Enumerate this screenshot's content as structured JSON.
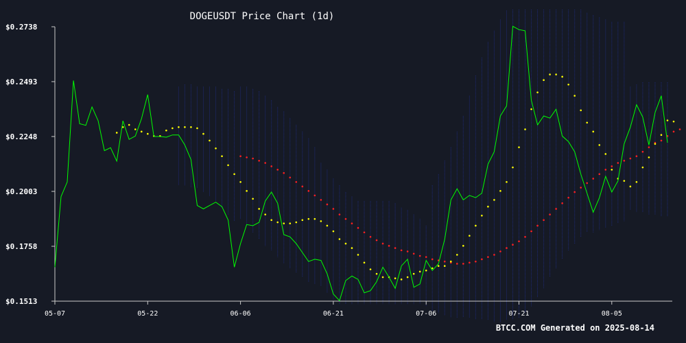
{
  "chart_data": {
    "type": "line",
    "title": "DOGEUSDT Price Chart (1d)",
    "xlabel": "",
    "ylabel": "",
    "footer": "BTCC.COM Generated on 2025-08-14",
    "ylim": [
      0.1513,
      0.2738
    ],
    "y_ticks": [
      "$0.2738",
      "$0.2493",
      "$0.2248",
      "$0.2003",
      "$0.1758",
      "$0.1513"
    ],
    "y_tick_values": [
      0.2738,
      0.2493,
      0.2248,
      0.2003,
      0.1758,
      0.1513
    ],
    "x_ticks": [
      "05-07",
      "05-22",
      "06-06",
      "06-21",
      "07-06",
      "07-21",
      "08-05"
    ],
    "x_tick_index": [
      0,
      15,
      30,
      45,
      60,
      75,
      90
    ],
    "x_start": "2025-05-07",
    "colors": {
      "background": "#161a25",
      "price": "#00ff00",
      "ma_short": "#ffff00",
      "ma_long": "#ff2020",
      "bands": "#1e2a78",
      "text": "#ffffff",
      "axis": "#cccccc"
    },
    "series": [
      {
        "values": [
          0.1665,
          0.198,
          0.2045,
          0.2498,
          0.2305,
          0.2298,
          0.238,
          0.2318,
          0.2185,
          0.2198,
          0.2138,
          0.2318,
          0.2235,
          0.225,
          0.2328,
          0.2435,
          0.2248,
          0.2248,
          0.2245,
          0.2255,
          0.2255,
          0.221,
          0.2145,
          0.194,
          0.1925,
          0.194,
          0.1955,
          0.1935,
          0.1875,
          0.1665,
          0.177,
          0.1855,
          0.185,
          0.1865,
          0.196,
          0.2,
          0.195,
          0.181,
          0.18,
          0.177,
          0.173,
          0.169,
          0.17,
          0.1695,
          0.1635,
          0.1545,
          0.1515,
          0.1605,
          0.1625,
          0.161,
          0.155,
          0.156,
          0.16,
          0.1665,
          0.162,
          0.157,
          0.167,
          0.17,
          0.1575,
          0.159,
          0.1695,
          0.165,
          0.168,
          0.179,
          0.1965,
          0.2015,
          0.1965,
          0.1985,
          0.1975,
          0.1995,
          0.2125,
          0.218,
          0.234,
          0.2385,
          0.274,
          0.2725,
          0.272,
          0.241,
          0.23,
          0.234,
          0.233,
          0.237,
          0.225,
          0.2225,
          0.218,
          0.208,
          0.1995,
          0.191,
          0.1975,
          0.207,
          0.2,
          0.205,
          0.2215,
          0.229,
          0.239,
          0.2335,
          0.221,
          0.2355,
          0.243,
          0.222
        ]
      },
      {
        "values": [
          null,
          null,
          null,
          null,
          null,
          null,
          null,
          null,
          null,
          null,
          0.2265,
          0.229,
          0.23,
          0.228,
          0.227,
          0.226,
          0.225,
          0.225,
          0.2275,
          0.2285,
          0.229,
          0.229,
          0.229,
          0.2285,
          0.226,
          0.223,
          0.2195,
          0.216,
          0.212,
          0.208,
          0.2045,
          0.2005,
          0.197,
          0.1925,
          0.19,
          0.1875,
          0.1865,
          0.186,
          0.186,
          0.1865,
          0.1875,
          0.188,
          0.188,
          0.187,
          0.185,
          0.1825,
          0.179,
          0.177,
          0.175,
          0.172,
          0.1685,
          0.1655,
          0.1635,
          0.162,
          0.162,
          0.1615,
          0.161,
          0.162,
          0.1635,
          0.1645,
          0.165,
          0.166,
          0.167,
          0.167,
          0.169,
          0.172,
          0.176,
          0.1805,
          0.185,
          0.1895,
          0.1935,
          0.1965,
          0.2005,
          0.2045,
          0.211,
          0.22,
          0.228,
          0.237,
          0.2445,
          0.25,
          0.2525,
          0.2525,
          0.2515,
          0.248,
          0.243,
          0.2365,
          0.231,
          0.227,
          0.221,
          0.217,
          0.21,
          0.206,
          0.205,
          0.2025,
          0.2045,
          0.211,
          0.2155,
          0.2215,
          0.2255,
          0.232,
          0.2315
        ]
      },
      {
        "values": [
          null,
          null,
          null,
          null,
          null,
          null,
          null,
          null,
          null,
          null,
          null,
          null,
          null,
          null,
          null,
          null,
          null,
          null,
          null,
          null,
          null,
          null,
          null,
          null,
          null,
          null,
          null,
          null,
          null,
          null,
          0.216,
          0.2155,
          0.215,
          0.214,
          0.213,
          0.2115,
          0.21,
          0.2085,
          0.2065,
          0.2045,
          0.2025,
          0.2005,
          0.1985,
          0.1965,
          0.1945,
          0.1925,
          0.19,
          0.188,
          0.186,
          0.184,
          0.182,
          0.18,
          0.1785,
          0.177,
          0.176,
          0.175,
          0.174,
          0.1735,
          0.1725,
          0.1715,
          0.171,
          0.17,
          0.1695,
          0.169,
          0.1685,
          0.168,
          0.168,
          0.1685,
          0.169,
          0.17,
          0.171,
          0.172,
          0.1735,
          0.175,
          0.1765,
          0.178,
          0.18,
          0.1825,
          0.185,
          0.1875,
          0.19,
          0.1925,
          0.195,
          0.1975,
          0.2,
          0.202,
          0.204,
          0.206,
          0.208,
          0.21,
          0.2115,
          0.213,
          0.214,
          0.215,
          0.216,
          0.218,
          0.22,
          0.222,
          0.223,
          0.225,
          0.227,
          0.228
        ]
      }
    ],
    "bands": [
      {
        "start": 20,
        "end": 29,
        "upper": [
          0.247,
          0.248,
          0.248,
          0.247,
          0.247,
          0.247,
          0.247,
          0.246,
          0.246,
          0.245
        ],
        "lower": [
          0.203,
          0.203,
          0.202,
          0.202,
          0.2,
          0.198,
          0.196,
          0.193,
          0.19,
          0.187
        ]
      },
      {
        "start": 30,
        "end": 42,
        "upper": [
          0.247,
          0.247,
          0.246,
          0.245,
          0.243,
          0.241,
          0.238,
          0.236,
          0.233,
          0.23,
          0.227,
          0.224,
          0.22
        ],
        "lower": [
          0.188,
          0.185,
          0.182,
          0.179,
          0.176,
          0.174,
          0.171,
          0.168,
          0.166,
          0.164,
          0.162,
          0.16,
          0.159
        ]
      },
      {
        "start": 43,
        "end": 60,
        "upper": [
          0.213,
          0.21,
          0.206,
          0.203,
          0.2,
          0.198,
          0.196,
          0.196,
          0.196,
          0.196,
          0.196,
          0.196,
          0.195,
          0.193,
          0.192,
          0.19,
          0.188,
          0.185
        ],
        "lower": [
          0.158,
          0.155,
          0.152,
          0.15,
          0.15,
          0.15,
          0.15,
          0.15,
          0.15,
          0.15,
          0.15,
          0.15,
          0.15,
          0.15,
          0.15,
          0.15,
          0.15,
          0.149
        ]
      },
      {
        "start": 61,
        "end": 75,
        "upper": [
          0.203,
          0.208,
          0.214,
          0.22,
          0.227,
          0.234,
          0.243,
          0.252,
          0.26,
          0.267,
          0.272,
          0.277,
          0.281,
          0.283,
          0.284
        ],
        "lower": [
          0.147,
          0.146,
          0.145,
          0.144,
          0.144,
          0.144,
          0.144,
          0.143,
          0.143,
          0.143,
          0.142,
          0.142,
          0.143,
          0.143,
          0.144
        ]
      },
      {
        "start": 76,
        "end": 86,
        "upper": [
          0.285,
          0.285,
          0.285,
          0.285,
          0.285,
          0.285,
          0.285,
          0.284,
          0.283,
          0.282,
          0.28
        ],
        "lower": [
          0.146,
          0.149,
          0.153,
          0.157,
          0.162,
          0.166,
          0.17,
          0.174,
          0.177,
          0.18,
          0.182
        ]
      },
      {
        "start": 87,
        "end": 92,
        "upper": [
          0.279,
          0.278,
          0.277,
          0.276,
          0.276,
          0.276
        ],
        "lower": [
          0.182,
          0.183,
          0.184,
          0.185,
          0.186,
          0.187
        ]
      },
      {
        "start": 93,
        "end": 99,
        "upper": [
          0.247,
          0.248,
          0.249,
          0.249,
          0.249,
          0.249,
          0.249
        ],
        "lower": [
          0.192,
          0.191,
          0.191,
          0.19,
          0.19,
          0.189,
          0.189
        ]
      }
    ]
  }
}
